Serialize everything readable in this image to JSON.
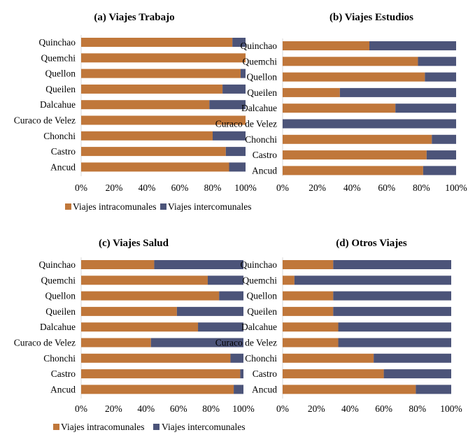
{
  "colors": {
    "intra": "#C0773A",
    "inter": "#4C5479",
    "grid": "#d9d9d9"
  },
  "chart_data": [
    {
      "type": "bar",
      "orientation": "horizontal",
      "stacked": "percent",
      "title": "(a) Viajes Trabajo",
      "categories": [
        "Quinchao",
        "Quemchi",
        "Quellon",
        "Queilen",
        "Dalcahue",
        "Curaco de Velez",
        "Chonchi",
        "Castro",
        "Ancud"
      ],
      "series": [
        {
          "name": "Viajes intracomunales",
          "values": [
            92,
            100,
            97,
            86,
            78,
            100,
            80,
            88,
            90
          ]
        },
        {
          "name": "Viajes intercomunales",
          "values": [
            8,
            0,
            3,
            14,
            22,
            0,
            20,
            12,
            10
          ]
        }
      ],
      "xticks": [
        "0%",
        "20%",
        "40%",
        "60%",
        "80%",
        "100%"
      ],
      "xlim": [
        0,
        100
      ],
      "legend": [
        "Viajes intracomunales",
        "Viajes intercomunales"
      ]
    },
    {
      "type": "bar",
      "orientation": "horizontal",
      "stacked": "percent",
      "title": "(b) Viajes Estudios",
      "categories": [
        "Quinchao",
        "Quemchi",
        "Quellon",
        "Queilen",
        "Dalcahue",
        "Curaco de Velez",
        "Chonchi",
        "Castro",
        "Ancud"
      ],
      "series": [
        {
          "name": "Viajes intracomunales",
          "values": [
            50,
            78,
            82,
            33,
            65,
            0,
            86,
            83,
            81
          ]
        },
        {
          "name": "Viajes intercomunales",
          "values": [
            50,
            22,
            18,
            67,
            35,
            100,
            14,
            17,
            19
          ]
        }
      ],
      "xticks": [
        "0%",
        "20%",
        "40%",
        "60%",
        "80%",
        "100%"
      ],
      "xlim": [
        0,
        100
      ]
    },
    {
      "type": "bar",
      "orientation": "horizontal",
      "stacked": "percent",
      "title": "(c) Viajes Salud",
      "categories": [
        "Quinchao",
        "Quemchi",
        "Quellon",
        "Queilen",
        "Dalcahue",
        "Curaco de Velez",
        "Chonchi",
        "Castro",
        "Ancud"
      ],
      "series": [
        {
          "name": "Viajes intracomunales",
          "values": [
            45,
            78,
            85,
            59,
            72,
            43,
            92,
            98,
            94
          ]
        },
        {
          "name": "Viajes intercomunales",
          "values": [
            55,
            22,
            15,
            41,
            28,
            57,
            8,
            2,
            6
          ]
        }
      ],
      "xticks": [
        "0%",
        "20%",
        "40%",
        "60%",
        "80%",
        "100%"
      ],
      "xlim": [
        0,
        100
      ],
      "legend": [
        "Viajes intracomunales",
        "Viajes intercomunales"
      ]
    },
    {
      "type": "bar",
      "orientation": "horizontal",
      "stacked": "percent",
      "title": "(d) Otros Viajes",
      "categories": [
        "Quinchao",
        "Quemchi",
        "Quellon",
        "Queilen",
        "Dalcahue",
        "Curaco de Velez",
        "Chonchi",
        "Castro",
        "Ancud"
      ],
      "series": [
        {
          "name": "Viajes intracomunales",
          "values": [
            30,
            7,
            30,
            30,
            33,
            33,
            54,
            60,
            79
          ]
        },
        {
          "name": "Viajes intercomunales",
          "values": [
            70,
            93,
            70,
            70,
            67,
            67,
            46,
            40,
            21
          ]
        }
      ],
      "xticks": [
        "0%",
        "20%",
        "40%",
        "60%",
        "80%",
        "100%"
      ],
      "xlim": [
        0,
        100
      ]
    }
  ]
}
